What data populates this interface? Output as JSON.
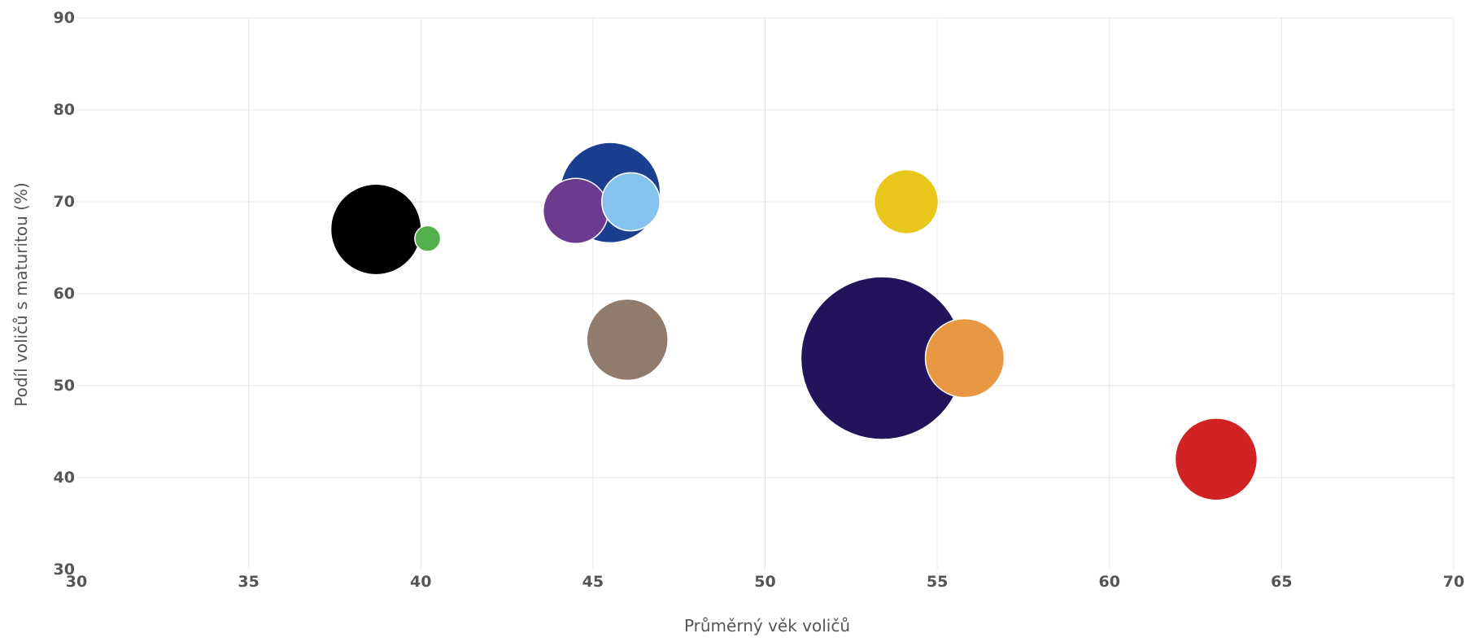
{
  "chart_data": {
    "type": "scatter",
    "variant": "bubble",
    "xlabel": "Průměrný věk voličů",
    "ylabel": "Podíl voličů s maturitou (%)",
    "xlim": [
      30,
      70
    ],
    "ylim": [
      30,
      90
    ],
    "xticks": [
      30,
      35,
      40,
      45,
      50,
      55,
      60,
      65,
      70
    ],
    "yticks": [
      30,
      40,
      50,
      60,
      70,
      80,
      90
    ],
    "grid": true,
    "legend": "none",
    "points": [
      {
        "x": 53.4,
        "y": 53,
        "size": 100,
        "color": "#22135a"
      },
      {
        "x": 45.5,
        "y": 71,
        "size": 38,
        "color": "#1b3f8f"
      },
      {
        "x": 38.7,
        "y": 67,
        "size": 31,
        "color": "#000000"
      },
      {
        "x": 46.0,
        "y": 55,
        "size": 25,
        "color": "#907b6d"
      },
      {
        "x": 55.8,
        "y": 53,
        "size": 23.5,
        "color": "#e89742"
      },
      {
        "x": 63.1,
        "y": 42,
        "size": 25.5,
        "color": "#d12323"
      },
      {
        "x": 54.1,
        "y": 70,
        "size": 15.5,
        "color": "#e9c61b"
      },
      {
        "x": 44.5,
        "y": 69,
        "size": 16,
        "color": "#6b3b8f"
      },
      {
        "x": 46.1,
        "y": 70,
        "size": 12.7,
        "color": "#85c3ee"
      },
      {
        "x": 40.2,
        "y": 66,
        "size": 2.5,
        "color": "#54b04a"
      }
    ]
  }
}
